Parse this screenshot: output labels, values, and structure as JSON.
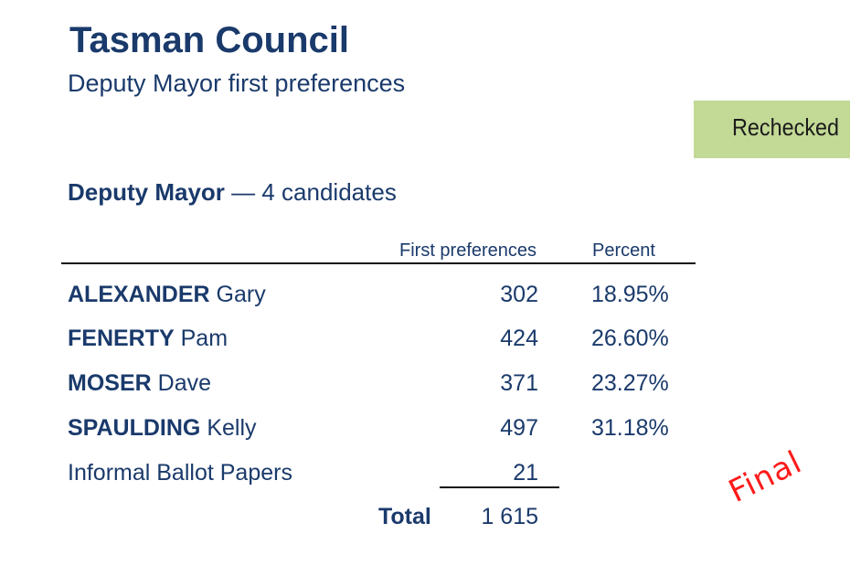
{
  "header": {
    "title": "Tasman Council",
    "subtitle": "Deputy Mayor first preferences"
  },
  "status_badge": {
    "label": "Rechecked",
    "color": "#c3d996"
  },
  "section": {
    "office": "Deputy Mayor",
    "candidates_text": " — 4 candidates"
  },
  "table": {
    "columns": [
      "First preferences",
      "Percent"
    ],
    "rows": [
      {
        "surname": "ALEXANDER",
        "given": " Gary",
        "votes": "302",
        "percent": "18.95%"
      },
      {
        "surname": "FENERTY",
        "given": " Pam",
        "votes": "424",
        "percent": "26.60%"
      },
      {
        "surname": "MOSER",
        "given": " Dave",
        "votes": "371",
        "percent": "23.27%"
      },
      {
        "surname": "SPAULDING",
        "given": " Kelly",
        "votes": "497",
        "percent": "31.18%"
      }
    ],
    "informal": {
      "label": "Informal Ballot Papers",
      "votes": "21"
    },
    "total": {
      "label": "Total",
      "value": "1 615"
    }
  },
  "stamp": {
    "text": "Final",
    "color": "#ff1a1a"
  },
  "colors": {
    "text": "#1a3a6b"
  }
}
